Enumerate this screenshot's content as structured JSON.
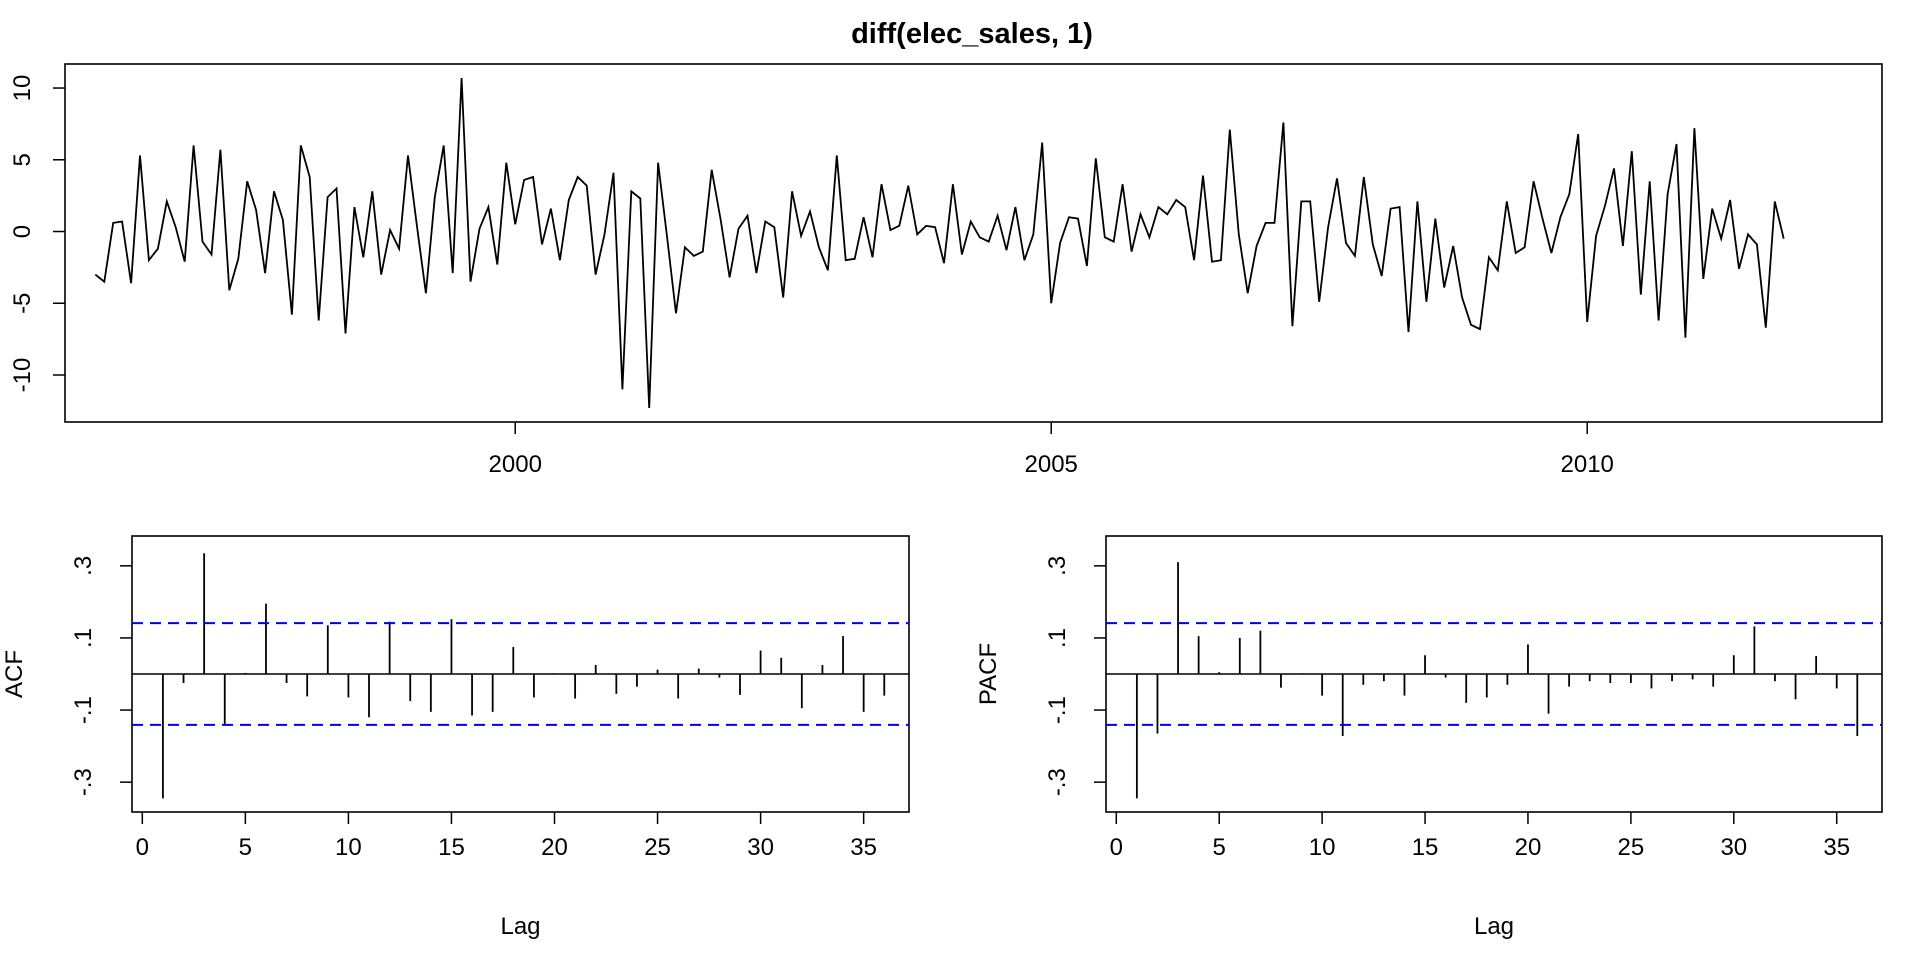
{
  "chart_data": [
    {
      "type": "line",
      "title": "diff(elec_sales, 1)",
      "xlabel": "",
      "ylabel": "",
      "x_start": 1996.083,
      "x_step": 0.0833333,
      "xlim": [
        1995.8,
        2012.75
      ],
      "ylim": [
        -12.3,
        10.7
      ],
      "xticks": [
        2000,
        2005,
        2010
      ],
      "yticks": [
        -10,
        -5,
        0,
        5,
        10
      ],
      "color": "#000000",
      "values": [
        -3.0,
        -3.5,
        0.6,
        0.7,
        -3.6,
        5.3,
        -2.0,
        -1.2,
        2.1,
        0.3,
        -2.1,
        6.0,
        -0.7,
        -1.6,
        5.7,
        -4.1,
        -1.9,
        3.5,
        1.5,
        -2.9,
        2.8,
        0.8,
        -5.8,
        6.0,
        3.8,
        -6.2,
        2.4,
        3.0,
        -7.1,
        1.7,
        -1.8,
        2.8,
        -3.0,
        0.1,
        -1.2,
        5.3,
        0.4,
        -4.3,
        2.4,
        6.0,
        -2.9,
        10.7,
        -3.5,
        0.2,
        1.7,
        -2.3,
        4.8,
        0.5,
        3.6,
        3.8,
        -0.9,
        1.6,
        -2.0,
        2.2,
        3.8,
        3.2,
        -3.0,
        -0.2,
        4.1,
        -11.0,
        2.8,
        2.3,
        -12.3,
        4.8,
        -0.4,
        -5.7,
        -1.1,
        -1.7,
        -1.4,
        4.3,
        0.8,
        -3.2,
        0.2,
        1.1,
        -2.9,
        0.7,
        0.3,
        -4.6,
        2.8,
        -0.3,
        1.4,
        -1.1,
        -2.7,
        5.3,
        -2.0,
        -1.9,
        1.0,
        -1.8,
        3.3,
        0.1,
        0.4,
        3.2,
        -0.2,
        0.4,
        0.3,
        -2.2,
        3.3,
        -1.6,
        0.7,
        -0.4,
        -0.7,
        1.1,
        -1.3,
        1.7,
        -2.0,
        -0.2,
        6.2,
        -5.0,
        -0.8,
        1.0,
        0.9,
        -2.4,
        5.1,
        -0.4,
        -0.7,
        3.3,
        -1.4,
        1.2,
        -0.4,
        1.7,
        1.2,
        2.2,
        1.7,
        -2.0,
        3.9,
        -2.1,
        -2.0,
        7.1,
        -0.2,
        -4.3,
        -1.0,
        0.6,
        0.6,
        7.6,
        -6.6,
        2.1,
        2.1,
        -4.9,
        0.3,
        3.7,
        -0.8,
        -1.7,
        3.8,
        -0.9,
        -3.1,
        1.6,
        1.7,
        -7.0,
        2.1,
        -4.9,
        0.9,
        -3.9,
        -1.0,
        -4.6,
        -6.5,
        -6.8,
        -1.8,
        -2.7,
        2.1,
        -1.5,
        -1.1,
        3.5,
        0.9,
        -1.5,
        1.0,
        2.6,
        6.8,
        -6.3,
        -0.3,
        1.8,
        4.4,
        -1.0,
        5.6,
        -4.4,
        3.5,
        -6.2,
        2.6,
        6.1,
        -7.4,
        7.2,
        -3.3,
        1.6,
        -0.5,
        2.2,
        -2.6,
        -0.2,
        -0.9,
        -6.7,
        2.1,
        -0.5
      ]
    },
    {
      "type": "bar",
      "title": "",
      "xlabel": "Lag",
      "ylabel": "ACF",
      "xlim": [
        -0.5,
        37.2
      ],
      "ylim": [
        -0.355,
        0.355
      ],
      "xticks": [
        0,
        5,
        10,
        15,
        20,
        25,
        30,
        35
      ],
      "yticks": [
        -0.3,
        -0.1,
        0.1,
        0.3
      ],
      "ci": 0.141,
      "ci_color": "#0000ee",
      "lags": [
        1,
        2,
        3,
        4,
        5,
        6,
        7,
        8,
        9,
        10,
        11,
        12,
        13,
        14,
        15,
        16,
        17,
        18,
        19,
        20,
        21,
        22,
        23,
        24,
        25,
        26,
        27,
        28,
        29,
        30,
        31,
        32,
        33,
        34,
        35,
        36
      ],
      "values": [
        -0.345,
        -0.025,
        0.335,
        -0.14,
        0.003,
        0.195,
        -0.025,
        -0.062,
        0.135,
        -0.065,
        -0.12,
        0.145,
        -0.075,
        -0.105,
        0.152,
        -0.115,
        -0.105,
        0.075,
        -0.065,
        0.002,
        -0.068,
        0.025,
        -0.055,
        -0.035,
        0.012,
        -0.068,
        0.015,
        -0.01,
        -0.058,
        0.065,
        0.045,
        -0.095,
        0.025,
        0.105,
        -0.105,
        -0.06
      ]
    },
    {
      "type": "bar",
      "title": "",
      "xlabel": "Lag",
      "ylabel": "PACF",
      "xlim": [
        -0.5,
        37.2
      ],
      "ylim": [
        -0.355,
        0.355
      ],
      "xticks": [
        0,
        5,
        10,
        15,
        20,
        25,
        30,
        35
      ],
      "yticks": [
        -0.3,
        -0.1,
        0.1,
        0.3
      ],
      "ci": 0.141,
      "ci_color": "#0000ee",
      "lags": [
        1,
        2,
        3,
        4,
        5,
        6,
        7,
        8,
        9,
        10,
        11,
        12,
        13,
        14,
        15,
        16,
        17,
        18,
        19,
        20,
        21,
        22,
        23,
        24,
        25,
        26,
        27,
        28,
        29,
        30,
        31,
        32,
        33,
        34,
        35,
        36
      ],
      "values": [
        -0.345,
        -0.165,
        0.31,
        0.105,
        0.005,
        0.1,
        0.12,
        -0.038,
        0.002,
        -0.06,
        -0.172,
        -0.03,
        -0.02,
        -0.06,
        0.052,
        -0.01,
        -0.08,
        -0.065,
        -0.03,
        0.082,
        -0.11,
        -0.035,
        -0.02,
        -0.025,
        -0.025,
        -0.04,
        -0.02,
        -0.015,
        -0.035,
        0.052,
        0.132,
        -0.02,
        -0.07,
        0.05,
        -0.04,
        -0.172
      ]
    }
  ]
}
